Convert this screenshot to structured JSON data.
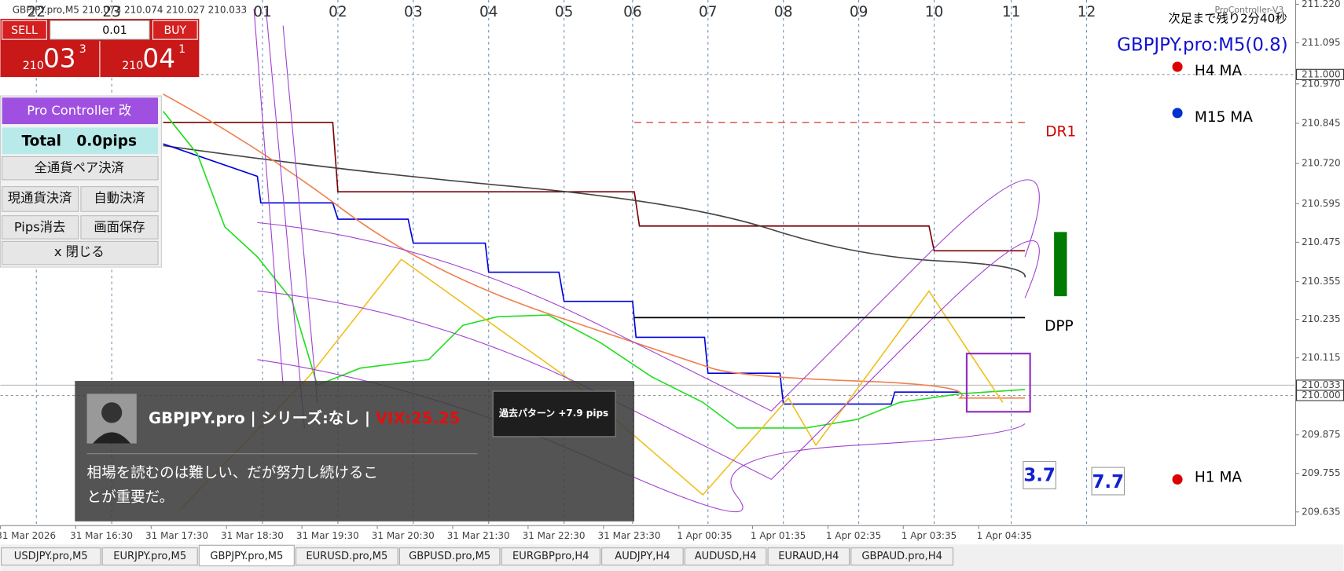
{
  "header": {
    "symbol_info": "GBPJPY.pro,M5  210.073 210.074 210.027 210.033",
    "countdown": "次足まで残り2分40秒",
    "symbol_spread": "GBPJPY.pro:M5(0.8)",
    "indicator": "ProController-V3"
  },
  "trade_panel": {
    "sell": "SELL",
    "lot": "0.01",
    "buy": "BUY",
    "bid": {
      "big": "210",
      "main": "03",
      "small": "3"
    },
    "ask": {
      "big": "210",
      "main": "04",
      "small": "1"
    }
  },
  "controller": {
    "title": "Pro Controller 改",
    "total": "Total   0.0pips",
    "buttons": [
      "全通貨ペア決済",
      "現通貨決済",
      "自動決済",
      "Pips消去",
      "画面保存",
      "x 閉じる"
    ]
  },
  "chart": {
    "hour_labels": [
      "22",
      "23",
      "01",
      "02",
      "03",
      "04",
      "05",
      "06",
      "07",
      "08",
      "09",
      "10",
      "11",
      "12"
    ],
    "price_labels": [
      "211.220",
      "211.095",
      "210.970",
      "210.845",
      "210.720",
      "210.595",
      "210.475",
      "210.355",
      "210.235",
      "210.115",
      "209.875",
      "209.755",
      "209.635"
    ],
    "highlight_prices": [
      "211.000",
      "210.033",
      "210.000"
    ],
    "time_labels": [
      "31 Mar 2026",
      "31 Mar 16:30",
      "31 Mar 17:30",
      "31 Mar 18:30",
      "31 Mar 19:30",
      "31 Mar 20:30",
      "31 Mar 21:30",
      "31 Mar 22:30",
      "31 Mar 23:30",
      "1 Apr 00:35",
      "1 Apr 01:35",
      "1 Apr 02:35",
      "1 Apr 03:35",
      "1 Apr 04:35"
    ],
    "annotations": {
      "h4_ma": "H4 MA",
      "m15_ma": "M15 MA",
      "dr1": "DR1",
      "dpp": "DPP",
      "h1_ma": "H1 MA",
      "box1": "3.7",
      "box2": "7.7"
    }
  },
  "overlay": {
    "title": "GBPJPY.pro | シリーズ:なし | ",
    "vix": "VIX:25.25",
    "pattern": "過去パターン +7.9 pips",
    "quote_line1": "相場を読むのは難しい、だが努力し続けるこ",
    "quote_line2": "とが重要だ。"
  },
  "tabs": [
    "USDJPY.pro,M5",
    "EURJPY.pro,M5",
    "GBPJPY.pro,M5",
    "EURUSD.pro,M5",
    "GBPUSD.pro,M5",
    "EURGBPpro,H4",
    "AUDJPY,H4",
    "AUDUSD,H4",
    "EURAUD,H4",
    "GBPAUD.pro,H4"
  ]
}
